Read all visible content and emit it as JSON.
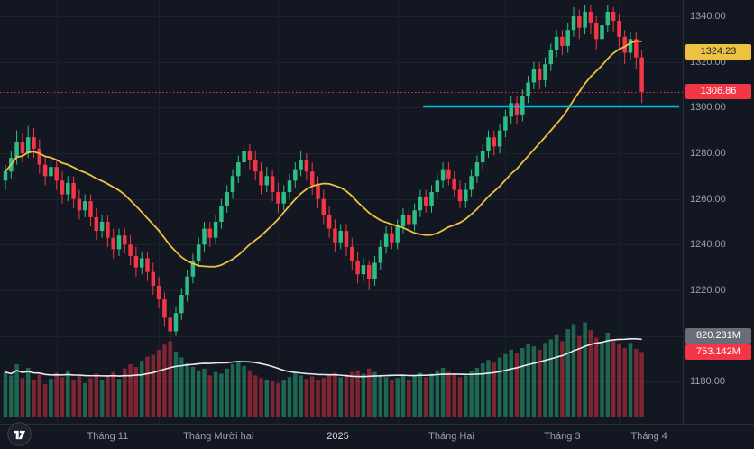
{
  "app": {
    "title": "Candlestick price chart with volume"
  },
  "colors": {
    "background": "#131722",
    "grid": "#1e222d",
    "up": "#2ebd85",
    "down": "#f23645",
    "volume_up": "rgba(46,189,133,0.48)",
    "volume_down": "rgba(242,54,69,0.48)",
    "price_ma": "#edc240",
    "volume_ma": "#e8eaf0",
    "axis_text": "#9aa0aa",
    "axis_text_strong": "#d8dbe3",
    "axis_border": "#2a2e39",
    "last_price_line": "#f23645",
    "support_line": "#00bcd4",
    "badge_volume_ma_bg": "#6a6d78",
    "badge_price_ma_fg": "#1c2030"
  },
  "price_axis": {
    "ticks": [
      {
        "value": 1340,
        "label": "1340.00"
      },
      {
        "value": 1320,
        "label": "1320.00"
      },
      {
        "value": 1300,
        "label": "1300.00"
      },
      {
        "value": 1280,
        "label": "1280.00"
      },
      {
        "value": 1260,
        "label": "1260.00"
      },
      {
        "value": 1240,
        "label": "1240.00"
      },
      {
        "value": 1220,
        "label": "1220.00"
      },
      {
        "value": 1180,
        "label": "1180.00"
      }
    ],
    "badges": {
      "price_ma": {
        "text": "1324.23",
        "value": 1324.23
      },
      "last_price": {
        "text": "1306.86",
        "value": 1306.86
      },
      "volume_ma": {
        "text": "820.231M"
      },
      "last_volume": {
        "text": "753.142M"
      }
    }
  },
  "chart_data": {
    "type": "candlestick",
    "title": "",
    "xlabel": "",
    "ylabel": "",
    "ylim": [
      1175,
      1347
    ],
    "grid": true,
    "y_ticks": [
      1180,
      1200,
      1220,
      1240,
      1260,
      1280,
      1300,
      1320,
      1340
    ],
    "x_axis_labels": [
      {
        "text": "Tháng 11",
        "index": 9
      },
      {
        "text": "Tháng Mười hai",
        "index": 27
      },
      {
        "text": "2025",
        "index": 48,
        "strong": true
      },
      {
        "text": "Tháng Hai",
        "index": 69
      },
      {
        "text": "Tháng 3",
        "index": 88
      },
      {
        "text": "Tháng 4",
        "index": 108
      }
    ],
    "last_price": 1306.86,
    "price_ma_period": 20,
    "volume_ma_period": 20,
    "support_line": {
      "price": 1300.5,
      "from_index": 74
    },
    "columns": [
      "open",
      "high",
      "low",
      "close",
      "volume_millions"
    ],
    "candles": [
      [
        1268,
        1275,
        1264,
        1272,
        520
      ],
      [
        1272,
        1281,
        1269,
        1278,
        480
      ],
      [
        1278,
        1290,
        1275,
        1285,
        610
      ],
      [
        1285,
        1289,
        1276,
        1280,
        450
      ],
      [
        1280,
        1292,
        1278,
        1287,
        570
      ],
      [
        1287,
        1291,
        1278,
        1282,
        430
      ],
      [
        1282,
        1286,
        1271,
        1275,
        490
      ],
      [
        1275,
        1279,
        1266,
        1270,
        380
      ],
      [
        1270,
        1278,
        1267,
        1274,
        440
      ],
      [
        1274,
        1277,
        1264,
        1268,
        510
      ],
      [
        1268,
        1272,
        1258,
        1262,
        460
      ],
      [
        1262,
        1270,
        1259,
        1267,
        540
      ],
      [
        1267,
        1270,
        1256,
        1260,
        420
      ],
      [
        1260,
        1264,
        1251,
        1255,
        480
      ],
      [
        1255,
        1262,
        1252,
        1259,
        390
      ],
      [
        1259,
        1262,
        1248,
        1252,
        450
      ],
      [
        1252,
        1256,
        1242,
        1246,
        500
      ],
      [
        1246,
        1253,
        1243,
        1250,
        430
      ],
      [
        1250,
        1253,
        1239,
        1243,
        470
      ],
      [
        1243,
        1247,
        1234,
        1238,
        520
      ],
      [
        1238,
        1247,
        1235,
        1244,
        440
      ],
      [
        1244,
        1247,
        1236,
        1240,
        560
      ],
      [
        1240,
        1244,
        1231,
        1235,
        610
      ],
      [
        1235,
        1239,
        1226,
        1230,
        580
      ],
      [
        1230,
        1237,
        1227,
        1234,
        650
      ],
      [
        1234,
        1237,
        1224,
        1228,
        700
      ],
      [
        1228,
        1232,
        1218,
        1222,
        720
      ],
      [
        1222,
        1226,
        1212,
        1216,
        780
      ],
      [
        1216,
        1219,
        1204,
        1208,
        840
      ],
      [
        1208,
        1212,
        1198,
        1202,
        880
      ],
      [
        1202,
        1213,
        1200,
        1210,
        760
      ],
      [
        1210,
        1221,
        1207,
        1218,
        690
      ],
      [
        1218,
        1229,
        1215,
        1226,
        620
      ],
      [
        1226,
        1236,
        1223,
        1233,
        580
      ],
      [
        1233,
        1243,
        1230,
        1240,
        540
      ],
      [
        1240,
        1250,
        1237,
        1247,
        560
      ],
      [
        1247,
        1250,
        1239,
        1243,
        480
      ],
      [
        1243,
        1253,
        1240,
        1250,
        520
      ],
      [
        1250,
        1260,
        1247,
        1257,
        500
      ],
      [
        1257,
        1266,
        1254,
        1263,
        560
      ],
      [
        1263,
        1273,
        1260,
        1270,
        610
      ],
      [
        1270,
        1279,
        1267,
        1276,
        650
      ],
      [
        1276,
        1285,
        1273,
        1281,
        590
      ],
      [
        1281,
        1284,
        1273,
        1277,
        540
      ],
      [
        1277,
        1281,
        1268,
        1272,
        480
      ],
      [
        1272,
        1276,
        1262,
        1266,
        450
      ],
      [
        1266,
        1274,
        1263,
        1270,
        430
      ],
      [
        1270,
        1273,
        1259,
        1263,
        410
      ],
      [
        1263,
        1267,
        1254,
        1258,
        390
      ],
      [
        1258,
        1266,
        1255,
        1263,
        420
      ],
      [
        1263,
        1271,
        1260,
        1268,
        460
      ],
      [
        1268,
        1276,
        1265,
        1273,
        510
      ],
      [
        1273,
        1281,
        1270,
        1277,
        480
      ],
      [
        1277,
        1280,
        1268,
        1272,
        440
      ],
      [
        1272,
        1276,
        1262,
        1266,
        470
      ],
      [
        1266,
        1270,
        1256,
        1260,
        430
      ],
      [
        1260,
        1264,
        1249,
        1253,
        450
      ],
      [
        1253,
        1257,
        1243,
        1247,
        480
      ],
      [
        1247,
        1251,
        1237,
        1241,
        510
      ],
      [
        1241,
        1249,
        1238,
        1246,
        460
      ],
      [
        1246,
        1249,
        1235,
        1239,
        490
      ],
      [
        1239,
        1243,
        1229,
        1233,
        520
      ],
      [
        1233,
        1237,
        1223,
        1227,
        540
      ],
      [
        1227,
        1234,
        1224,
        1231,
        500
      ],
      [
        1231,
        1233,
        1220,
        1225,
        560
      ],
      [
        1225,
        1235,
        1222,
        1232,
        520
      ],
      [
        1232,
        1242,
        1229,
        1239,
        480
      ],
      [
        1239,
        1248,
        1236,
        1245,
        460
      ],
      [
        1245,
        1248,
        1238,
        1241,
        430
      ],
      [
        1241,
        1251,
        1238,
        1248,
        450
      ],
      [
        1248,
        1256,
        1245,
        1253,
        480
      ],
      [
        1253,
        1256,
        1246,
        1249,
        430
      ],
      [
        1249,
        1258,
        1246,
        1255,
        470
      ],
      [
        1255,
        1264,
        1252,
        1261,
        510
      ],
      [
        1261,
        1264,
        1254,
        1257,
        460
      ],
      [
        1257,
        1266,
        1254,
        1263,
        500
      ],
      [
        1263,
        1271,
        1260,
        1268,
        540
      ],
      [
        1268,
        1276,
        1265,
        1273,
        570
      ],
      [
        1273,
        1276,
        1266,
        1269,
        520
      ],
      [
        1269,
        1272,
        1261,
        1264,
        490
      ],
      [
        1264,
        1268,
        1256,
        1259,
        460
      ],
      [
        1259,
        1267,
        1256,
        1264,
        480
      ],
      [
        1264,
        1273,
        1261,
        1270,
        530
      ],
      [
        1270,
        1279,
        1267,
        1276,
        570
      ],
      [
        1276,
        1284,
        1273,
        1281,
        620
      ],
      [
        1281,
        1290,
        1278,
        1287,
        660
      ],
      [
        1287,
        1290,
        1279,
        1283,
        630
      ],
      [
        1283,
        1293,
        1280,
        1290,
        690
      ],
      [
        1290,
        1299,
        1287,
        1296,
        730
      ],
      [
        1296,
        1305,
        1293,
        1302,
        780
      ],
      [
        1302,
        1305,
        1293,
        1297,
        740
      ],
      [
        1297,
        1308,
        1294,
        1305,
        800
      ],
      [
        1305,
        1314,
        1302,
        1311,
        850
      ],
      [
        1311,
        1320,
        1308,
        1317,
        820
      ],
      [
        1317,
        1320,
        1308,
        1312,
        780
      ],
      [
        1312,
        1322,
        1309,
        1319,
        860
      ],
      [
        1319,
        1328,
        1316,
        1325,
        900
      ],
      [
        1325,
        1334,
        1322,
        1331,
        950
      ],
      [
        1331,
        1334,
        1323,
        1327,
        880
      ],
      [
        1327,
        1337,
        1324,
        1334,
        1020
      ],
      [
        1334,
        1344,
        1331,
        1340,
        1080
      ],
      [
        1340,
        1343,
        1330,
        1335,
        940
      ],
      [
        1335,
        1345,
        1332,
        1342,
        1100
      ],
      [
        1342,
        1345,
        1332,
        1337,
        1010
      ],
      [
        1337,
        1340,
        1325,
        1330,
        920
      ],
      [
        1330,
        1339,
        1327,
        1336,
        870
      ],
      [
        1336,
        1345,
        1333,
        1342,
        980
      ],
      [
        1342,
        1344,
        1333,
        1338,
        890
      ],
      [
        1338,
        1341,
        1326,
        1331,
        840
      ],
      [
        1331,
        1334,
        1319,
        1324,
        800
      ],
      [
        1324,
        1333,
        1321,
        1330,
        860
      ],
      [
        1330,
        1333,
        1317,
        1322,
        790
      ],
      [
        1322,
        1325,
        1302,
        1306.86,
        753.142
      ]
    ]
  },
  "logo": {
    "name": "TradingView"
  }
}
